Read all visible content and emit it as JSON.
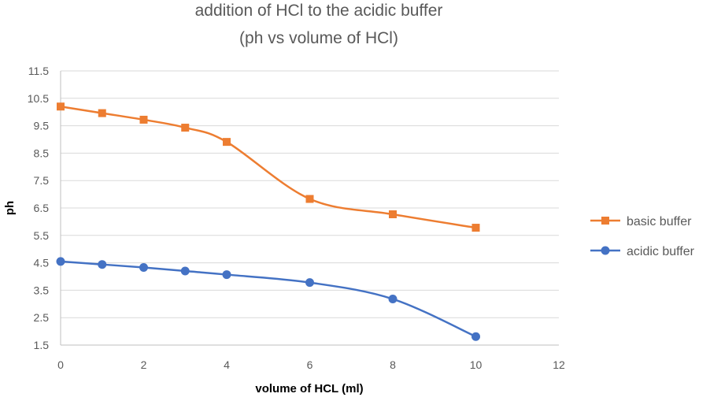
{
  "chart_data": {
    "type": "line",
    "title": "addition of HCl to the acidic buffer",
    "subtitle": "(ph vs volume of HCl)",
    "xlabel": "volume of HCL (ml)",
    "ylabel": "ph",
    "xlim": [
      0,
      12
    ],
    "ylim": [
      1.5,
      11.5
    ],
    "x_ticks": [
      "0",
      "2",
      "4",
      "6",
      "8",
      "10",
      "12"
    ],
    "y_ticks": [
      "1.5",
      "2.5",
      "3.5",
      "4.5",
      "5.5",
      "6.5",
      "7.5",
      "8.5",
      "9.5",
      "10.5",
      "11.5"
    ],
    "grid": true,
    "smooth": true,
    "legend_position": "right",
    "x": [
      0,
      1,
      2,
      3,
      4,
      6,
      8,
      10
    ],
    "series": [
      {
        "name": "basic buffer",
        "color": "#ED7D31",
        "marker": "square",
        "values": [
          10.2,
          9.96,
          9.72,
          9.43,
          8.91,
          6.83,
          6.27,
          5.78
        ]
      },
      {
        "name": "acidic buffer",
        "color": "#4472C4",
        "marker": "circle",
        "values": [
          4.55,
          4.44,
          4.33,
          4.2,
          4.07,
          3.78,
          3.18,
          1.81
        ]
      }
    ]
  }
}
